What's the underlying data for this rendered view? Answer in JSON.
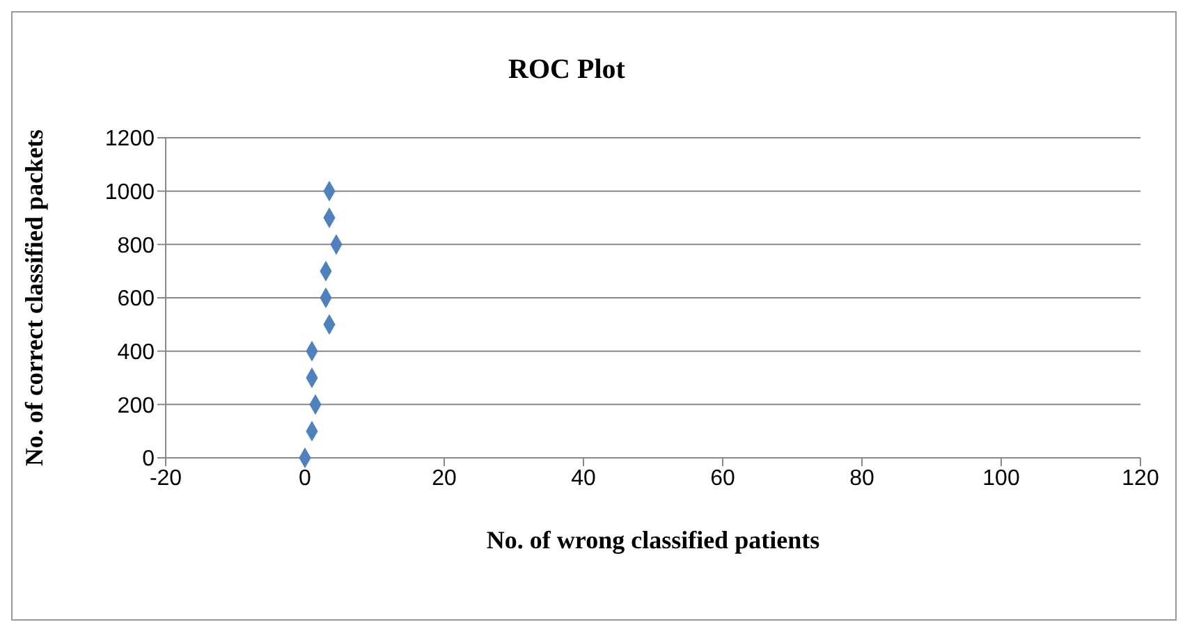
{
  "chart_data": {
    "type": "scatter",
    "title": "ROC Plot",
    "xlabel": "No. of wrong  classified patients",
    "ylabel": "No. of correct classified packets",
    "x": [
      0,
      1,
      1.5,
      1,
      1,
      3.5,
      3,
      3,
      4.5,
      3.5,
      3.5
    ],
    "series": [
      {
        "color": "#4f81bd",
        "values": [
          0,
          100,
          200,
          300,
          400,
          500,
          600,
          700,
          800,
          900,
          1000
        ]
      }
    ],
    "xlim": [
      -20,
      120
    ],
    "xticks": [
      -20,
      0,
      20,
      40,
      60,
      80,
      100,
      120
    ],
    "ylim": [
      0,
      1200
    ],
    "yticks": [
      0,
      200,
      400,
      600,
      800,
      1000,
      1200
    ],
    "grid": "y",
    "marker": "diamond"
  }
}
